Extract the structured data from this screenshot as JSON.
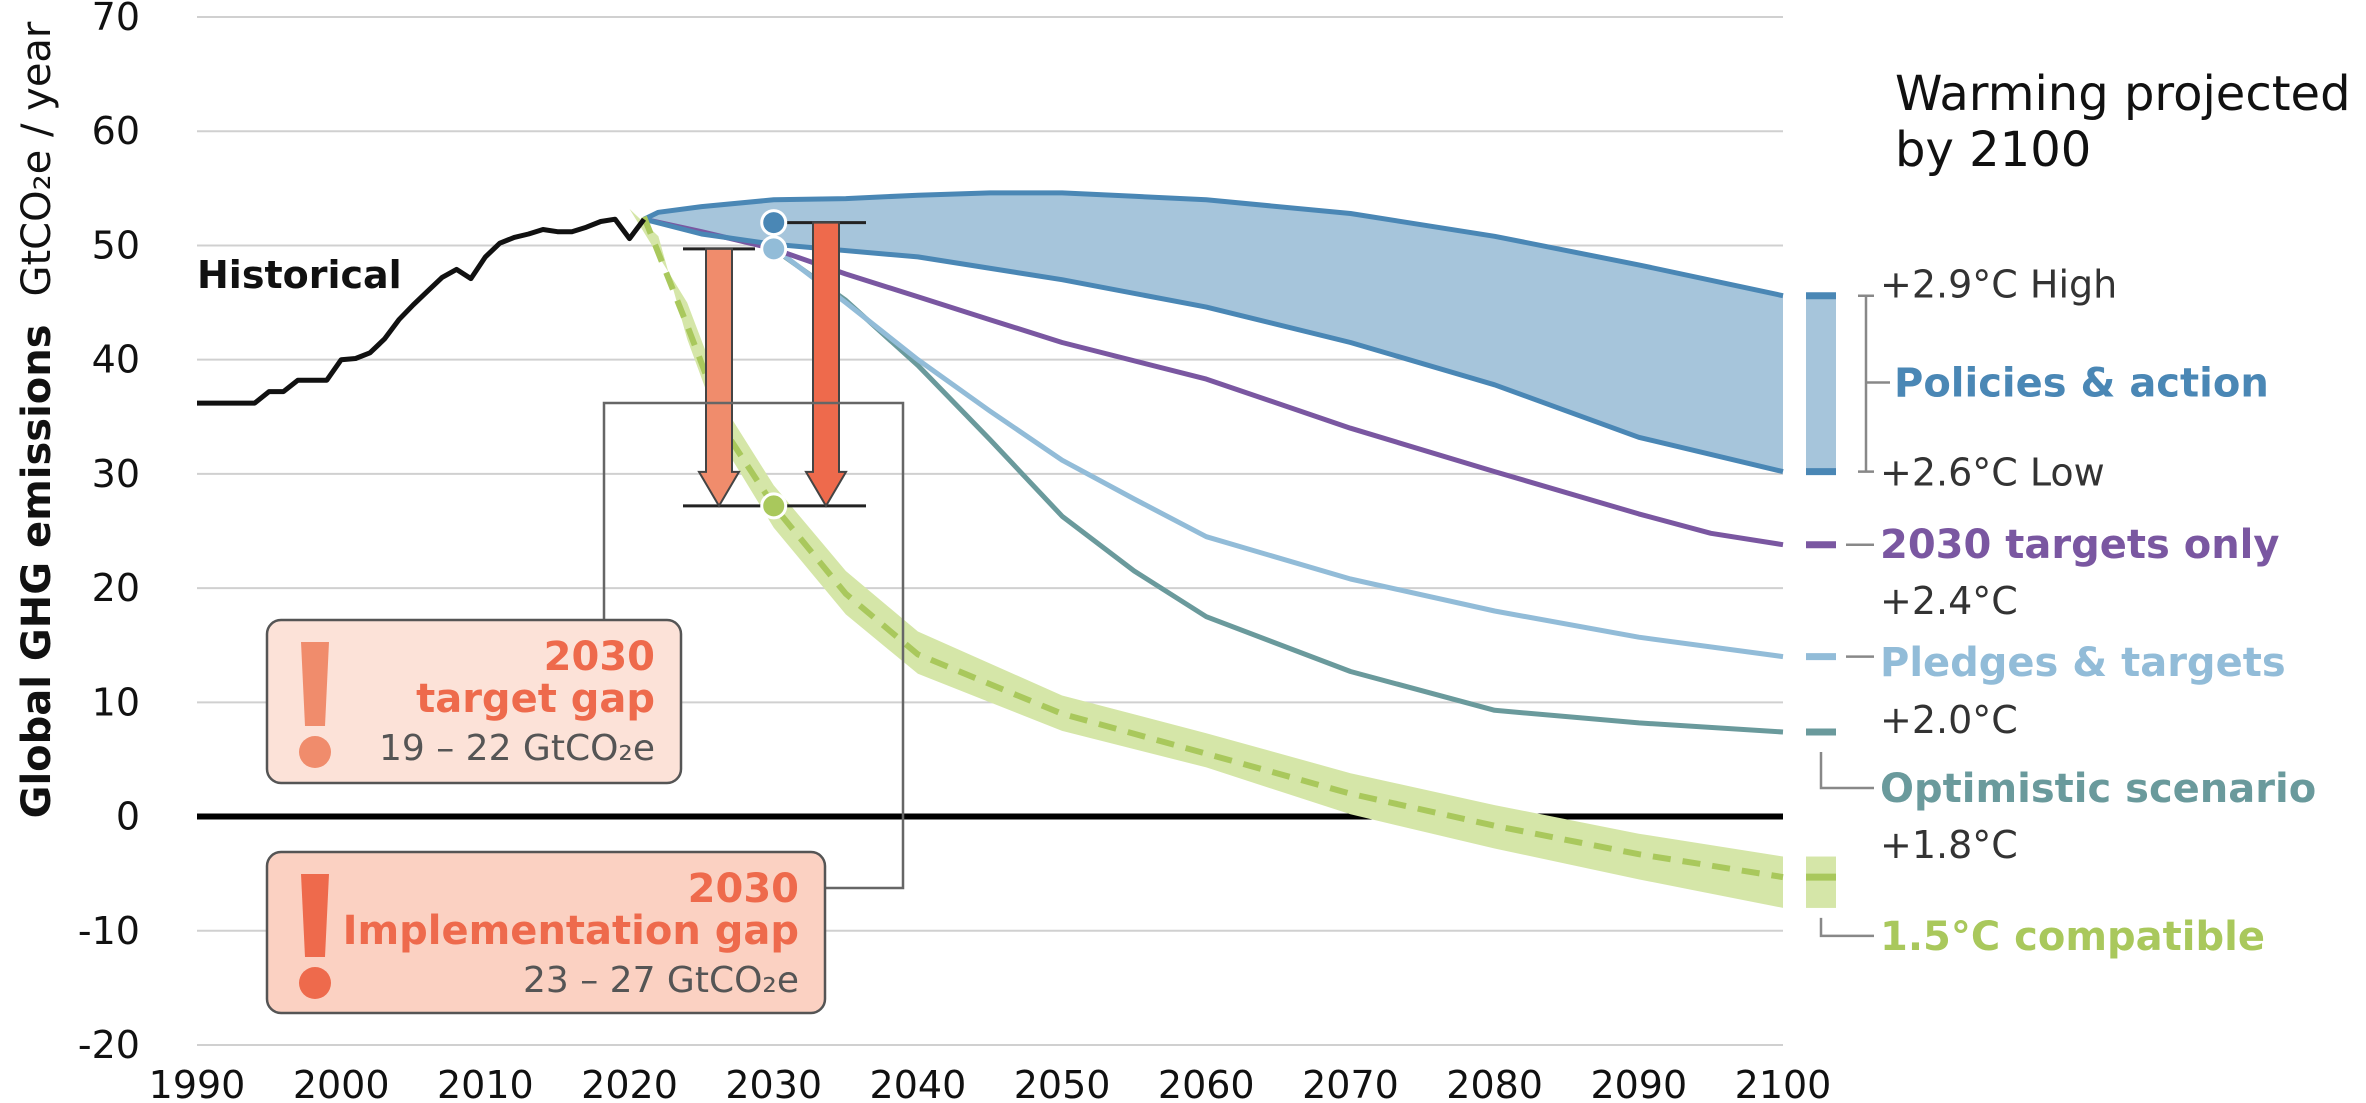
{
  "chart_data": {
    "type": "line",
    "ylabel": "Global GHG emissions",
    "ylabel_unit": "GtCO₂e / year",
    "xlim": [
      1990,
      2100
    ],
    "ylim": [
      -20,
      70
    ],
    "x_ticks": [
      "1990",
      "2000",
      "2010",
      "2020",
      "2030",
      "2040",
      "2050",
      "2060",
      "2070",
      "2080",
      "2090",
      "2100"
    ],
    "y_ticks": [
      "70",
      "60",
      "50",
      "40",
      "30",
      "20",
      "10",
      "0",
      "-10",
      "-20"
    ],
    "grid": true,
    "side_title_lines": [
      "Warming projected",
      "by 2100"
    ],
    "series": [
      {
        "name": "Historical",
        "color": "#111111",
        "points": [
          [
            1990,
            36.2
          ],
          [
            1994,
            36.2
          ],
          [
            1995,
            37.2
          ],
          [
            1996,
            37.2
          ],
          [
            1997,
            38.2
          ],
          [
            1999,
            38.2
          ],
          [
            2000,
            40
          ],
          [
            2001,
            40.1
          ],
          [
            2002,
            40.6
          ],
          [
            2003,
            41.8
          ],
          [
            2004,
            43.5
          ],
          [
            2005,
            44.8
          ],
          [
            2006,
            46
          ],
          [
            2007,
            47.2
          ],
          [
            2008,
            47.9
          ],
          [
            2009,
            47.1
          ],
          [
            2010,
            49
          ],
          [
            2011,
            50.2
          ],
          [
            2012,
            50.7
          ],
          [
            2013,
            51
          ],
          [
            2014,
            51.4
          ],
          [
            2015,
            51.2
          ],
          [
            2016,
            51.2
          ],
          [
            2017,
            51.6
          ],
          [
            2018,
            52.1
          ],
          [
            2019,
            52.3
          ],
          [
            2020,
            50.6
          ],
          [
            2021,
            52.3
          ]
        ]
      },
      {
        "name": "Policies & action",
        "label_high": "+2.9°C High",
        "label_low": "+2.6°C Low",
        "color": "#4a87b5",
        "fill": "#a6c5db",
        "high": [
          [
            2021,
            52.3
          ],
          [
            2022,
            52.9
          ],
          [
            2025,
            53.4
          ],
          [
            2030,
            54
          ],
          [
            2035,
            54.1
          ],
          [
            2040,
            54.4
          ],
          [
            2045,
            54.6
          ],
          [
            2050,
            54.6
          ],
          [
            2055,
            54.3
          ],
          [
            2060,
            54
          ],
          [
            2070,
            52.8
          ],
          [
            2080,
            50.8
          ],
          [
            2090,
            48.3
          ],
          [
            2100,
            45.6
          ]
        ],
        "low": [
          [
            2021,
            52.3
          ],
          [
            2025,
            51
          ],
          [
            2030,
            50.1
          ],
          [
            2040,
            49
          ],
          [
            2050,
            47
          ],
          [
            2060,
            44.6
          ],
          [
            2070,
            41.5
          ],
          [
            2080,
            37.8
          ],
          [
            2090,
            33.2
          ],
          [
            2100,
            30.2
          ]
        ]
      },
      {
        "name": "2030 targets only",
        "temp": "+2.4°C",
        "color": "#7a57a1",
        "points": [
          [
            2021,
            52.3
          ],
          [
            2025,
            51.2
          ],
          [
            2030,
            49.7
          ],
          [
            2035,
            47.5
          ],
          [
            2040,
            45.5
          ],
          [
            2045,
            43.5
          ],
          [
            2050,
            41.5
          ],
          [
            2060,
            38.3
          ],
          [
            2070,
            34
          ],
          [
            2080,
            30.2
          ],
          [
            2090,
            26.5
          ],
          [
            2095,
            24.8
          ],
          [
            2100,
            23.8
          ]
        ]
      },
      {
        "name": "Pledges & targets",
        "temp": "+2.0°C",
        "color": "#92bcd8",
        "points": [
          [
            2021,
            52.3
          ],
          [
            2025,
            51.2
          ],
          [
            2030,
            49.8
          ],
          [
            2035,
            45
          ],
          [
            2040,
            40
          ],
          [
            2045,
            35.5
          ],
          [
            2050,
            31.2
          ],
          [
            2055,
            27.8
          ],
          [
            2060,
            24.5
          ],
          [
            2070,
            20.8
          ],
          [
            2080,
            18
          ],
          [
            2090,
            15.7
          ],
          [
            2100,
            14
          ]
        ]
      },
      {
        "name": "Optimistic scenario",
        "temp": "+1.8°C",
        "color": "#6a9a9c",
        "points": [
          [
            2030,
            49.7
          ],
          [
            2035,
            45.2
          ],
          [
            2040,
            39.5
          ],
          [
            2045,
            33
          ],
          [
            2050,
            26.3
          ],
          [
            2055,
            21.5
          ],
          [
            2060,
            17.5
          ],
          [
            2070,
            12.7
          ],
          [
            2080,
            9.3
          ],
          [
            2090,
            8.2
          ],
          [
            2100,
            7.4
          ]
        ]
      },
      {
        "name": "1.5°C compatible",
        "color": "#a9c85c",
        "band_color": "#d5e6a8",
        "median": [
          [
            2021,
            52.5
          ],
          [
            2024,
            43
          ],
          [
            2027,
            33
          ],
          [
            2030,
            27.2
          ],
          [
            2035,
            19.5
          ],
          [
            2040,
            14.2
          ],
          [
            2050,
            9
          ],
          [
            2060,
            5.5
          ],
          [
            2070,
            2
          ],
          [
            2080,
            -0.8
          ],
          [
            2090,
            -3.3
          ],
          [
            2100,
            -5.3
          ]
        ],
        "upper": [
          [
            2020,
            53.2
          ],
          [
            2024,
            45
          ],
          [
            2027,
            35
          ],
          [
            2030,
            29
          ],
          [
            2035,
            21.5
          ],
          [
            2040,
            16.2
          ],
          [
            2050,
            10.6
          ],
          [
            2060,
            7.3
          ],
          [
            2070,
            3.8
          ],
          [
            2080,
            1
          ],
          [
            2090,
            -1.5
          ],
          [
            2100,
            -3.5
          ]
        ],
        "lower": [
          [
            2022,
            50.8
          ],
          [
            2024,
            41.8
          ],
          [
            2027,
            31.5
          ],
          [
            2030,
            25.3
          ],
          [
            2035,
            17.7
          ],
          [
            2040,
            12.5
          ],
          [
            2050,
            7.5
          ],
          [
            2060,
            4.3
          ],
          [
            2070,
            0.2
          ],
          [
            2080,
            -2.8
          ],
          [
            2090,
            -5.5
          ],
          [
            2100,
            -8
          ]
        ]
      }
    ],
    "gaps": [
      {
        "name": "2030 target gap",
        "title_lines": [
          "2030",
          "target gap"
        ],
        "range": "19 – 22  GtCO₂e",
        "arrow_color": "#f08c6c",
        "box_fill": "#fce2d8",
        "from": 49.7,
        "to": 27.2
      },
      {
        "name": "2030 Implementation gap",
        "title_lines": [
          "2030",
          "Implementation gap"
        ],
        "range": "23 – 27  GtCO₂e",
        "arrow_color": "#ee6a4c",
        "box_fill": "#fbd1c2",
        "from": 52,
        "to": 27.2
      }
    ]
  }
}
